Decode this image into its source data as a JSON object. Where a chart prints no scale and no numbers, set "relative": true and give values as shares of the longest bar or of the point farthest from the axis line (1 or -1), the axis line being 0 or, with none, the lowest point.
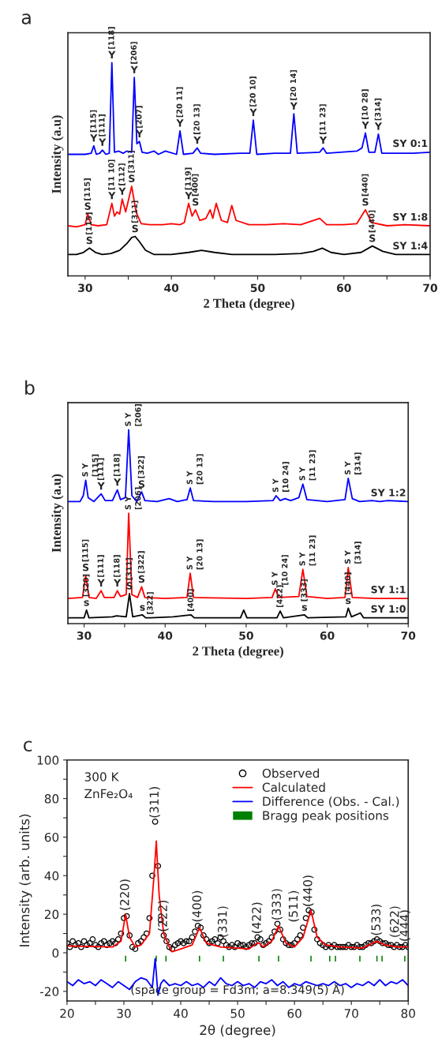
{
  "chart_data": [
    {
      "type": "line",
      "title": "a",
      "xlabel": "2 Theta (degree)",
      "ylabel": "Intensity (a.u)",
      "relative": true,
      "grid": false,
      "legend": false,
      "xlim": [
        28,
        70
      ],
      "xticks": [
        30,
        {
          "value": 35,
          "label": null
        },
        40,
        {
          "value": 45,
          "label": null
        },
        50,
        {
          "value": 55,
          "label": null
        },
        60,
        {
          "value": 65,
          "label": null
        },
        70
      ],
      "series": [
        {
          "name": "SY 0:1",
          "color": "#0000ff",
          "x": [
            28,
            29,
            30,
            30.7,
            31,
            31.3,
            31.7,
            32,
            32.4,
            32.8,
            33.1,
            33.4,
            33.9,
            34.4,
            34.8,
            35.4,
            35.7,
            36.0,
            36.3,
            36.6,
            37.2,
            38,
            38.5,
            39.3,
            40.6,
            41,
            41.4,
            42.5,
            43,
            43.4,
            45,
            48,
            49.1,
            49.5,
            49.9,
            52,
            53.8,
            54.2,
            54.6,
            57.2,
            57.6,
            58,
            61.5,
            62.1,
            62.5,
            62.9,
            63.6,
            64,
            64.4,
            66,
            68,
            70
          ],
          "values": [
            0.57,
            0.57,
            0.57,
            0.575,
            0.61,
            0.57,
            0.575,
            0.59,
            0.57,
            0.575,
            1.0,
            0.58,
            0.585,
            0.575,
            0.585,
            0.58,
            0.93,
            0.62,
            0.63,
            0.58,
            0.575,
            0.585,
            0.57,
            0.585,
            0.57,
            0.68,
            0.57,
            0.575,
            0.6,
            0.575,
            0.57,
            0.575,
            0.575,
            0.73,
            0.57,
            0.575,
            0.575,
            0.76,
            0.575,
            0.58,
            0.6,
            0.575,
            0.585,
            0.6,
            0.67,
            0.58,
            0.58,
            0.665,
            0.575,
            0.575,
            0.575,
            0.58
          ]
        },
        {
          "name": "SY 1:8",
          "color": "#ff0000",
          "x": [
            28,
            29,
            30,
            30.3,
            30.7,
            31.5,
            32.5,
            33.1,
            33.4,
            33.7,
            34,
            34.3,
            34.7,
            35.4,
            35.9,
            36.5,
            37.5,
            39,
            40,
            41,
            41.5,
            42,
            42.4,
            42.8,
            43.3,
            44,
            44.5,
            44.8,
            45.2,
            45.8,
            46.5,
            47,
            47.5,
            49,
            51,
            53,
            55,
            57.2,
            58,
            60,
            61.5,
            62.5,
            63.2,
            65,
            67,
            70
          ],
          "values": [
            0.235,
            0.23,
            0.24,
            0.29,
            0.24,
            0.235,
            0.24,
            0.34,
            0.28,
            0.3,
            0.29,
            0.36,
            0.3,
            0.42,
            0.3,
            0.245,
            0.24,
            0.24,
            0.245,
            0.24,
            0.25,
            0.34,
            0.28,
            0.31,
            0.26,
            0.27,
            0.31,
            0.27,
            0.34,
            0.26,
            0.25,
            0.33,
            0.26,
            0.24,
            0.24,
            0.245,
            0.24,
            0.27,
            0.24,
            0.24,
            0.245,
            0.31,
            0.25,
            0.235,
            0.24,
            0.235
          ]
        },
        {
          "name": "SY 1:4",
          "color": "#000000",
          "x": [
            28,
            29,
            29.8,
            30.5,
            31.2,
            32,
            33,
            34,
            34.8,
            35.4,
            35.8,
            36.3,
            37,
            38,
            40,
            42,
            43.5,
            45,
            47,
            50,
            52,
            55,
            56.5,
            57.5,
            58.5,
            60,
            62,
            63.3,
            64.5,
            66,
            68,
            70
          ],
          "values": [
            0.1,
            0.1,
            0.11,
            0.13,
            0.11,
            0.1,
            0.105,
            0.12,
            0.15,
            0.18,
            0.185,
            0.16,
            0.12,
            0.1,
            0.1,
            0.11,
            0.12,
            0.11,
            0.1,
            0.1,
            0.1,
            0.105,
            0.115,
            0.13,
            0.11,
            0.1,
            0.11,
            0.14,
            0.115,
            0.1,
            0.1,
            0.1
          ]
        }
      ],
      "annotations": [
        {
          "text": "Y",
          "x": 31,
          "y": 0.61
        },
        {
          "text": "[115]",
          "x": 31,
          "y": 0.61
        },
        {
          "text": "Y",
          "x": 32,
          "y": 0.59
        },
        {
          "text": "[111]",
          "x": 32,
          "y": 0.59
        },
        {
          "text": "Y",
          "x": 33.1,
          "y": 1.0
        },
        {
          "text": "[118]",
          "x": 33.1,
          "y": 1.0
        },
        {
          "text": "Y",
          "x": 35.7,
          "y": 0.93
        },
        {
          "text": "[206]",
          "x": 35.7,
          "y": 0.93
        },
        {
          "text": "Y",
          "x": 36.3,
          "y": 0.63
        },
        {
          "text": "[207]",
          "x": 36.3,
          "y": 0.63
        },
        {
          "text": "Y",
          "x": 41,
          "y": 0.68
        },
        {
          "text": "[20 11]",
          "x": 41,
          "y": 0.68
        },
        {
          "text": "Y",
          "x": 43,
          "y": 0.6
        },
        {
          "text": "[20 13]",
          "x": 43,
          "y": 0.6
        },
        {
          "text": "Y",
          "x": 49.5,
          "y": 0.73
        },
        {
          "text": "[20 10]",
          "x": 49.5,
          "y": 0.73
        },
        {
          "text": "Y",
          "x": 54.2,
          "y": 0.76
        },
        {
          "text": "[20 14]",
          "x": 54.2,
          "y": 0.76
        },
        {
          "text": "Y",
          "x": 57.6,
          "y": 0.6
        },
        {
          "text": "[11 23]",
          "x": 57.6,
          "y": 0.6
        },
        {
          "text": "Y",
          "x": 62.5,
          "y": 0.67
        },
        {
          "text": "[10 28]",
          "x": 62.5,
          "y": 0.67
        },
        {
          "text": "Y",
          "x": 64,
          "y": 0.665
        },
        {
          "text": "[314]",
          "x": 64,
          "y": 0.665
        },
        {
          "text": "S",
          "x": 30.3,
          "y": 0.29
        },
        {
          "text": "[115]",
          "x": 30.3,
          "y": 0.29
        },
        {
          "text": "Y",
          "x": 33.1,
          "y": 0.34
        },
        {
          "text": "[11 10]",
          "x": 33.1,
          "y": 0.34
        },
        {
          "text": "Y",
          "x": 34.3,
          "y": 0.36
        },
        {
          "text": "[112]",
          "x": 34.3,
          "y": 0.36
        },
        {
          "text": "S",
          "x": 35.4,
          "y": 0.42
        },
        {
          "text": "[311]",
          "x": 35.4,
          "y": 0.42
        },
        {
          "text": "Y",
          "x": 42,
          "y": 0.34
        },
        {
          "text": "[119]",
          "x": 42,
          "y": 0.34
        },
        {
          "text": "S",
          "x": 42.8,
          "y": 0.31
        },
        {
          "text": "[400]",
          "x": 42.8,
          "y": 0.31
        },
        {
          "text": "S",
          "x": 62.5,
          "y": 0.31
        },
        {
          "text": "[440]",
          "x": 62.5,
          "y": 0.31
        },
        {
          "text": "S",
          "x": 30.5,
          "y": 0.13
        },
        {
          "text": "[115]",
          "x": 30.5,
          "y": 0.13
        },
        {
          "text": "S",
          "x": 35.8,
          "y": 0.185
        },
        {
          "text": "[311]",
          "x": 35.8,
          "y": 0.185
        },
        {
          "text": "S",
          "x": 63.3,
          "y": 0.14
        },
        {
          "text": "[440]",
          "x": 63.3,
          "y": 0.14
        }
      ]
    },
    {
      "type": "line",
      "title": "b",
      "xlabel": "2 Theta (degree)",
      "ylabel": "Intensity (a.u)",
      "relative": true,
      "grid": false,
      "legend": false,
      "xlim": [
        28,
        70
      ],
      "xticks": [
        30,
        {
          "value": 35,
          "label": null
        },
        40,
        {
          "value": 45,
          "label": null
        },
        50,
        {
          "value": 55,
          "label": null
        },
        60,
        {
          "value": 65,
          "label": null
        },
        70
      ],
      "series": [
        {
          "name": "SY 1:2",
          "color": "#0000ff",
          "x": [
            28,
            29.5,
            29.9,
            30.2,
            30.5,
            31.2,
            32.1,
            32.6,
            33.5,
            34.1,
            34.5,
            35.1,
            35.5,
            35.9,
            36.5,
            37.1,
            37.5,
            39,
            40.5,
            41.5,
            42.7,
            43.1,
            43.5,
            46,
            50,
            53.3,
            53.7,
            54.2,
            54.8,
            55.5,
            56.5,
            57,
            57.5,
            60,
            62.2,
            62.6,
            63.1,
            64,
            65.5,
            66.5,
            67.5,
            70
          ],
          "values": [
            0.63,
            0.63,
            0.66,
            0.74,
            0.65,
            0.63,
            0.67,
            0.635,
            0.635,
            0.69,
            0.64,
            0.65,
            1.0,
            0.66,
            0.63,
            0.68,
            0.635,
            0.63,
            0.645,
            0.63,
            0.64,
            0.7,
            0.635,
            0.63,
            0.63,
            0.635,
            0.66,
            0.635,
            0.645,
            0.635,
            0.65,
            0.72,
            0.64,
            0.63,
            0.64,
            0.75,
            0.645,
            0.63,
            0.635,
            0.63,
            0.635,
            0.63
          ]
        },
        {
          "name": "SY 1:1",
          "color": "#ff0000",
          "x": [
            28,
            29.8,
            30.2,
            30.6,
            31.5,
            32.1,
            32.5,
            33.7,
            34.1,
            34.5,
            35.2,
            35.5,
            35.9,
            36.6,
            37.1,
            37.5,
            40,
            42.7,
            43.1,
            43.5,
            50,
            53.2,
            53.6,
            54,
            56.5,
            57,
            57.5,
            60,
            62.2,
            62.6,
            63.1,
            66,
            70
          ],
          "values": [
            0.13,
            0.135,
            0.25,
            0.135,
            0.13,
            0.17,
            0.135,
            0.135,
            0.17,
            0.14,
            0.15,
            0.57,
            0.15,
            0.135,
            0.19,
            0.135,
            0.13,
            0.135,
            0.26,
            0.135,
            0.13,
            0.135,
            0.18,
            0.135,
            0.14,
            0.28,
            0.14,
            0.13,
            0.135,
            0.29,
            0.135,
            0.13,
            0.13
          ]
        },
        {
          "name": "SY 1:0",
          "color": "#000000",
          "x": [
            28,
            30,
            30.3,
            30.6,
            33.5,
            34,
            35.2,
            35.6,
            36,
            37.2,
            37.6,
            38.2,
            41,
            43.2,
            43.6,
            49.3,
            49.7,
            50.1,
            53.8,
            54.2,
            54.6,
            57.2,
            57.6,
            62.3,
            62.6,
            63,
            64.1,
            64.5,
            70
          ],
          "values": [
            0.03,
            0.03,
            0.07,
            0.03,
            0.035,
            0.04,
            0.035,
            0.155,
            0.035,
            0.045,
            0.03,
            0.03,
            0.035,
            0.045,
            0.03,
            0.03,
            0.07,
            0.03,
            0.03,
            0.065,
            0.03,
            0.045,
            0.03,
            0.035,
            0.08,
            0.035,
            0.055,
            0.03,
            0.03
          ]
        }
      ],
      "annotations": [
        {
          "text": "S Y",
          "x": 30.2,
          "y": 0.74
        },
        {
          "text": "[115]",
          "x": 30.2,
          "y": 0.74
        },
        {
          "text": "Y",
          "x": 32.1,
          "y": 0.67
        },
        {
          "text": "[111]",
          "x": 32.1,
          "y": 0.67
        },
        {
          "text": "Y",
          "x": 34.1,
          "y": 0.69
        },
        {
          "text": "[118]",
          "x": 34.1,
          "y": 0.69
        },
        {
          "text": "S Y",
          "x": 35.5,
          "y": 1.0
        },
        {
          "text": "[206]",
          "x": 35.5,
          "y": 1.0
        },
        {
          "text": "S",
          "x": 37.1,
          "y": 0.68
        },
        {
          "text": "[322]",
          "x": 37.1,
          "y": 0.68
        },
        {
          "text": "S Y",
          "x": 43.1,
          "y": 0.7
        },
        {
          "text": "[20 13]",
          "x": 43.1,
          "y": 0.7
        },
        {
          "text": "S Y",
          "x": 53.7,
          "y": 0.66
        },
        {
          "text": "[10 24]",
          "x": 53.7,
          "y": 0.66
        },
        {
          "text": "S Y",
          "x": 57,
          "y": 0.72
        },
        {
          "text": "[11 23]",
          "x": 57,
          "y": 0.72
        },
        {
          "text": "S Y",
          "x": 62.6,
          "y": 0.75
        },
        {
          "text": "[314]",
          "x": 62.6,
          "y": 0.75
        },
        {
          "text": "S",
          "x": 30.2,
          "y": 0.25
        },
        {
          "text": "[115]",
          "x": 30.2,
          "y": 0.25
        },
        {
          "text": "Y",
          "x": 32.1,
          "y": 0.17
        },
        {
          "text": "[111]",
          "x": 32.1,
          "y": 0.17
        },
        {
          "text": "Y",
          "x": 34.1,
          "y": 0.17
        },
        {
          "text": "[118]",
          "x": 34.1,
          "y": 0.17
        },
        {
          "text": "S Y",
          "x": 35.5,
          "y": 0.57
        },
        {
          "text": "[206]",
          "x": 35.5,
          "y": 0.57
        },
        {
          "text": "S",
          "x": 37.1,
          "y": 0.19
        },
        {
          "text": "[322]",
          "x": 37.1,
          "y": 0.19
        },
        {
          "text": "S Y",
          "x": 43.1,
          "y": 0.26
        },
        {
          "text": "[20 13]",
          "x": 43.1,
          "y": 0.26
        },
        {
          "text": "S Y",
          "x": 53.6,
          "y": 0.18
        },
        {
          "text": "[10 24]",
          "x": 53.6,
          "y": 0.18
        },
        {
          "text": "S Y",
          "x": 57,
          "y": 0.28
        },
        {
          "text": "[11 23]",
          "x": 57,
          "y": 0.28
        },
        {
          "text": "S Y",
          "x": 62.6,
          "y": 0.29
        },
        {
          "text": "[314]",
          "x": 62.6,
          "y": 0.29
        },
        {
          "text": "s",
          "x": 30.3,
          "y": 0.07
        },
        {
          "text": "[320]",
          "x": 30.3,
          "y": 0.07
        },
        {
          "text": "S",
          "x": 35.6,
          "y": 0.155
        },
        {
          "text": "[311]",
          "x": 35.6,
          "y": 0.155
        },
        {
          "text": "s",
          "x": 37.2,
          "y": 0.045
        },
        {
          "text": "[322]",
          "x": 38.2,
          "y": 0.03
        },
        {
          "text": "[400]",
          "x": 43.2,
          "y": 0.045
        },
        {
          "text": "[422]",
          "x": 54.2,
          "y": 0.065
        },
        {
          "text": "s",
          "x": 57.2,
          "y": 0.045
        },
        {
          "text": "[333]",
          "x": 57.2,
          "y": 0.045
        },
        {
          "text": "s",
          "x": 62.6,
          "y": 0.08
        },
        {
          "text": "[440]",
          "x": 62.6,
          "y": 0.08
        }
      ]
    },
    {
      "type": "line",
      "title": "c",
      "xlabel": "2θ (degree)",
      "ylabel": "Intensity (arb. units)",
      "grid": false,
      "legend": "top right",
      "xlim": [
        20,
        80
      ],
      "xticks": [
        20,
        {
          "value": 25,
          "label": null
        },
        30,
        {
          "value": 35,
          "label": null
        },
        40,
        {
          "value": 45,
          "label": null
        },
        50,
        {
          "value": 55,
          "label": null
        },
        60,
        {
          "value": 65,
          "label": null
        },
        70,
        {
          "value": 75,
          "label": null
        },
        80
      ],
      "ylim": [
        -25,
        100
      ],
      "yticks": [
        -20,
        {
          "value": -10,
          "label": null
        },
        0,
        {
          "value": 10,
          "label": null
        },
        20,
        {
          "value": 30,
          "label": null
        },
        40,
        {
          "value": 50,
          "label": null
        },
        60,
        {
          "value": 70,
          "label": null
        },
        80,
        {
          "value": 90,
          "label": null
        },
        100
      ],
      "series": [
        {
          "name": "Observed",
          "type": "scatter",
          "marker": "circle",
          "color": "#000000",
          "x": [
            20,
            20.5,
            21,
            21.5,
            22,
            22.5,
            23,
            23.5,
            24,
            24.5,
            25,
            25.5,
            26,
            26.5,
            27,
            27.5,
            28,
            28.5,
            29,
            29.5,
            30,
            30.5,
            31,
            31.5,
            32,
            32.5,
            33,
            33.5,
            34,
            34.5,
            35,
            35.5,
            36,
            36.5,
            37,
            37.5,
            38,
            38.5,
            39,
            39.5,
            40,
            40.5,
            41,
            41.5,
            42,
            42.5,
            43,
            43.5,
            44,
            44.5,
            45,
            45.5,
            46,
            46.5,
            47,
            47.5,
            48,
            48.5,
            49,
            49.5,
            50,
            50.5,
            51,
            51.5,
            52,
            52.5,
            53,
            53.5,
            54,
            54.5,
            55,
            55.5,
            56,
            56.5,
            57,
            57.5,
            58,
            58.5,
            59,
            59.5,
            60,
            60.5,
            61,
            61.5,
            62,
            62.5,
            63,
            63.5,
            64,
            64.5,
            65,
            65.5,
            66,
            66.5,
            67,
            67.5,
            68,
            68.5,
            69,
            69.5,
            70,
            70.5,
            71,
            71.5,
            72,
            72.5,
            73,
            73.5,
            74,
            74.5,
            75,
            75.5,
            76,
            76.5,
            77,
            77.5,
            78,
            78.5,
            79,
            79.5,
            80
          ],
          "values": [
            5,
            3,
            6,
            4,
            5,
            3,
            6,
            4,
            5,
            7,
            4,
            3,
            5,
            6,
            4,
            5,
            6,
            5,
            7,
            10,
            18,
            19,
            9,
            3,
            2,
            5,
            6,
            8,
            10,
            18,
            40,
            68,
            45,
            17,
            9,
            6,
            3,
            2,
            4,
            5,
            6,
            5,
            6,
            6,
            8,
            11,
            14,
            13,
            9,
            7,
            5,
            6,
            7,
            5,
            8,
            6,
            4,
            3,
            4,
            3,
            5,
            4,
            4,
            3,
            4,
            5,
            5,
            8,
            7,
            4,
            5,
            6,
            8,
            11,
            15,
            12,
            7,
            5,
            4,
            4,
            5,
            7,
            9,
            13,
            18,
            22,
            21,
            12,
            7,
            5,
            4,
            3,
            4,
            3,
            4,
            3,
            3,
            3,
            3,
            4,
            3,
            3,
            4,
            3,
            3,
            4,
            5,
            5,
            6,
            7,
            6,
            5,
            5,
            4,
            4,
            3,
            4,
            3,
            3,
            4,
            3
          ]
        },
        {
          "name": "Calculated",
          "type": "line",
          "color": "#ff0000",
          "x": [
            20,
            28,
            29.5,
            30.3,
            31,
            32,
            33,
            34.5,
            35.3,
            35.7,
            36.2,
            37,
            38,
            38.5,
            40,
            42,
            43.3,
            44.5,
            47,
            52,
            53.4,
            53.8,
            54.5,
            56,
            57.2,
            58.5,
            60,
            61.5,
            62.9,
            64,
            65.5,
            68,
            72,
            74.5,
            76,
            78,
            80
          ],
          "values": [
            3.5,
            3,
            6,
            20,
            8,
            3,
            4,
            10,
            40,
            58,
            30,
            10,
            3,
            0.5,
            2,
            4,
            13,
            5,
            3,
            2,
            5,
            5,
            3,
            6,
            14,
            5,
            3,
            8,
            22,
            8,
            4,
            3,
            2.5,
            6,
            4,
            3,
            3
          ]
        },
        {
          "name": "Difference (Obs. - Cal.)",
          "type": "line",
          "color": "#0000ff",
          "x": [
            20,
            21,
            22,
            23,
            24,
            25,
            26,
            27,
            28,
            29,
            30,
            31,
            32,
            33,
            34,
            35,
            35.5,
            36,
            36.5,
            37,
            38,
            39,
            40,
            41,
            42,
            43,
            44,
            45,
            46,
            47,
            48,
            49,
            50,
            51,
            52,
            53,
            54,
            55,
            56,
            57,
            58,
            59,
            60,
            61,
            62,
            63,
            64,
            65,
            66,
            67,
            68,
            69,
            70,
            71,
            72,
            73,
            74,
            75,
            76,
            77,
            78,
            79,
            80
          ],
          "values": [
            -15,
            -17,
            -14,
            -16,
            -15,
            -17,
            -14,
            -16,
            -18,
            -15,
            -17,
            -19,
            -15,
            -13,
            -14,
            -18,
            -3,
            -22,
            -16,
            -14,
            -17,
            -16,
            -17,
            -15,
            -17,
            -16,
            -18,
            -15,
            -17,
            -13,
            -16,
            -17,
            -15,
            -17,
            -16,
            -18,
            -15,
            -16,
            -14,
            -17,
            -15,
            -18,
            -16,
            -17,
            -15,
            -16,
            -17,
            -16,
            -17,
            -15,
            -17,
            -16,
            -18,
            -16,
            -17,
            -15,
            -17,
            -14,
            -17,
            -15,
            -16,
            -14,
            -17
          ]
        },
        {
          "name": "Bragg peak positions",
          "type": "bar",
          "color": "#008000",
          "x": [
            30.3,
            35.7,
            37.4,
            43.3,
            47.5,
            53.75,
            57.2,
            62.9,
            66.2,
            67.2,
            71.5,
            74.5,
            75.4,
            79.4
          ],
          "values": [
            3,
            3,
            3,
            3,
            3,
            3,
            3,
            3,
            3,
            3,
            3,
            3,
            3,
            3
          ],
          "base": [
            -4.5,
            -4.5,
            -4.5,
            -4.5,
            -4.5,
            -4.5,
            -4.5,
            -4.5,
            -4.5,
            -4.5,
            -4.5,
            -4.5,
            -4.5,
            -4.5
          ]
        }
      ],
      "annotations": [
        "300 K",
        "ZnFe₂O₄",
        "(space group = Fd3m; a=8.349(5) Å)",
        {
          "text": "(220)",
          "x": 30.3,
          "y": 20
        },
        {
          "text": "(311)",
          "x": 35.5,
          "y": 68
        },
        {
          "text": "(222)",
          "x": 37,
          "y": 9
        },
        {
          "text": "(400)",
          "x": 43,
          "y": 14
        },
        {
          "text": "(331)",
          "x": 47.5,
          "y": 6
        },
        {
          "text": "(422)",
          "x": 53.5,
          "y": 8
        },
        {
          "text": "(333)",
          "x": 57,
          "y": 15
        },
        {
          "text": "(511)",
          "x": 57.2,
          "y": 14
        },
        {
          "text": "(440)",
          "x": 62.5,
          "y": 22
        },
        {
          "text": "(533)",
          "x": 74.5,
          "y": 7
        },
        {
          "text": "(622)",
          "x": 75,
          "y": 6
        },
        {
          "text": "(444)",
          "x": 79.5,
          "y": 4
        }
      ]
    }
  ]
}
